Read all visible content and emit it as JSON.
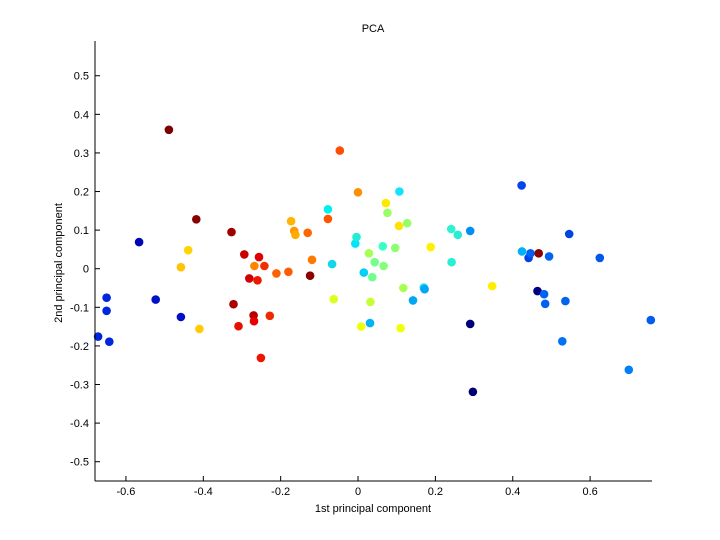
{
  "chart_data": {
    "type": "scatter",
    "title": "PCA",
    "xlabel": "1st principal component",
    "ylabel": "2nd principal component",
    "xlim": [
      -0.68,
      0.76
    ],
    "ylim": [
      -0.55,
      0.59
    ],
    "xticks": [
      -0.6,
      -0.4,
      -0.2,
      0,
      0.2,
      0.4,
      0.6
    ],
    "xtick_labels": [
      "-0.6",
      "-0.4",
      "-0.2",
      "0",
      "0.2",
      "0.4",
      "0.6"
    ],
    "yticks": [
      -0.5,
      -0.4,
      -0.3,
      -0.2,
      -0.1,
      0,
      0.1,
      0.2,
      0.3,
      0.4,
      0.5
    ],
    "ytick_labels": [
      "-0.5",
      "-0.4",
      "-0.3",
      "-0.2",
      "-0.1",
      "0",
      "0.1",
      "0.2",
      "0.3",
      "0.4",
      "0.5"
    ],
    "grid": false,
    "legend": false,
    "points": [
      {
        "x": -0.672,
        "y": -0.176,
        "color": "#0026dc"
      },
      {
        "x": -0.65,
        "y": -0.075,
        "color": "#0026dc"
      },
      {
        "x": -0.65,
        "y": -0.109,
        "color": "#0026dc"
      },
      {
        "x": -0.643,
        "y": -0.189,
        "color": "#0026dc"
      },
      {
        "x": -0.566,
        "y": 0.069,
        "color": "#0006b8"
      },
      {
        "x": -0.523,
        "y": -0.08,
        "color": "#0010c8"
      },
      {
        "x": -0.458,
        "y": -0.125,
        "color": "#0010c8"
      },
      {
        "x": -0.489,
        "y": 0.36,
        "color": "#7a0000"
      },
      {
        "x": -0.458,
        "y": 0.004,
        "color": "#ffc400"
      },
      {
        "x": -0.439,
        "y": 0.048,
        "color": "#ffd400"
      },
      {
        "x": -0.418,
        "y": 0.128,
        "color": "#880000"
      },
      {
        "x": -0.41,
        "y": -0.156,
        "color": "#ffcc00"
      },
      {
        "x": -0.327,
        "y": 0.095,
        "color": "#a00000"
      },
      {
        "x": -0.322,
        "y": -0.092,
        "color": "#aa0000"
      },
      {
        "x": -0.309,
        "y": -0.149,
        "color": "#e41000"
      },
      {
        "x": -0.294,
        "y": 0.037,
        "color": "#c60000"
      },
      {
        "x": -0.281,
        "y": -0.025,
        "color": "#d00000"
      },
      {
        "x": -0.27,
        "y": -0.121,
        "color": "#b40000"
      },
      {
        "x": -0.269,
        "y": -0.136,
        "color": "#e80000"
      },
      {
        "x": -0.268,
        "y": 0.007,
        "color": "#ff8400"
      },
      {
        "x": -0.26,
        "y": -0.03,
        "color": "#ec1800"
      },
      {
        "x": -0.256,
        "y": 0.03,
        "color": "#e00000"
      },
      {
        "x": -0.251,
        "y": -0.231,
        "color": "#f01400"
      },
      {
        "x": -0.242,
        "y": 0.007,
        "color": "#f03000"
      },
      {
        "x": -0.228,
        "y": -0.122,
        "color": "#f02800"
      },
      {
        "x": -0.211,
        "y": -0.012,
        "color": "#ff6000"
      },
      {
        "x": -0.18,
        "y": -0.008,
        "color": "#ff5c00"
      },
      {
        "x": -0.173,
        "y": 0.123,
        "color": "#ffb400"
      },
      {
        "x": -0.165,
        "y": 0.098,
        "color": "#ff9800"
      },
      {
        "x": -0.162,
        "y": 0.088,
        "color": "#ffac00"
      },
      {
        "x": -0.13,
        "y": 0.093,
        "color": "#ff6400"
      },
      {
        "x": -0.124,
        "y": -0.018,
        "color": "#8c0000"
      },
      {
        "x": -0.119,
        "y": 0.023,
        "color": "#ff7800"
      },
      {
        "x": -0.078,
        "y": 0.129,
        "color": "#ff5400"
      },
      {
        "x": -0.078,
        "y": 0.154,
        "color": "#00f0f0"
      },
      {
        "x": -0.067,
        "y": 0.012,
        "color": "#12d6ec"
      },
      {
        "x": -0.063,
        "y": -0.079,
        "color": "#dcff20"
      },
      {
        "x": -0.047,
        "y": 0.306,
        "color": "#ff4c00"
      },
      {
        "x": -0.007,
        "y": 0.065,
        "color": "#00e4f8"
      },
      {
        "x": -0.004,
        "y": 0.082,
        "color": "#22ecd4"
      },
      {
        "x": 0.0,
        "y": 0.198,
        "color": "#ff9000"
      },
      {
        "x": 0.008,
        "y": -0.15,
        "color": "#ecff10"
      },
      {
        "x": 0.015,
        "y": -0.01,
        "color": "#00d0f8"
      },
      {
        "x": 0.028,
        "y": 0.04,
        "color": "#a8ff54"
      },
      {
        "x": 0.031,
        "y": -0.141,
        "color": "#00b4f0"
      },
      {
        "x": 0.032,
        "y": -0.086,
        "color": "#c4ff3a"
      },
      {
        "x": 0.037,
        "y": -0.022,
        "color": "#70ff8c"
      },
      {
        "x": 0.043,
        "y": 0.017,
        "color": "#74ff88"
      },
      {
        "x": 0.064,
        "y": 0.058,
        "color": "#38ffc4"
      },
      {
        "x": 0.066,
        "y": 0.007,
        "color": "#84ff7a"
      },
      {
        "x": 0.072,
        "y": 0.17,
        "color": "#ffe800"
      },
      {
        "x": 0.076,
        "y": 0.145,
        "color": "#9aff64"
      },
      {
        "x": 0.096,
        "y": 0.054,
        "color": "#90ff6e"
      },
      {
        "x": 0.106,
        "y": 0.111,
        "color": "#ffe200"
      },
      {
        "x": 0.107,
        "y": 0.2,
        "color": "#12e4f8"
      },
      {
        "x": 0.11,
        "y": -0.154,
        "color": "#f2ff0a"
      },
      {
        "x": 0.117,
        "y": -0.05,
        "color": "#a8ff54"
      },
      {
        "x": 0.127,
        "y": 0.118,
        "color": "#94ff6a"
      },
      {
        "x": 0.142,
        "y": -0.082,
        "color": "#00a8f4"
      },
      {
        "x": 0.17,
        "y": -0.049,
        "color": "#18dcec"
      },
      {
        "x": 0.172,
        "y": -0.053,
        "color": "#00a4f8"
      },
      {
        "x": 0.188,
        "y": 0.056,
        "color": "#fff000"
      },
      {
        "x": 0.241,
        "y": 0.103,
        "color": "#2cf4d0"
      },
      {
        "x": 0.242,
        "y": 0.017,
        "color": "#28f0d2"
      },
      {
        "x": 0.258,
        "y": 0.088,
        "color": "#28ecd6"
      },
      {
        "x": 0.29,
        "y": 0.098,
        "color": "#0090f4"
      },
      {
        "x": 0.29,
        "y": -0.143,
        "color": "#000078"
      },
      {
        "x": 0.297,
        "y": -0.319,
        "color": "#000070"
      },
      {
        "x": 0.347,
        "y": -0.045,
        "color": "#ffee00"
      },
      {
        "x": 0.423,
        "y": 0.216,
        "color": "#0044f0"
      },
      {
        "x": 0.424,
        "y": 0.045,
        "color": "#00b0f8"
      },
      {
        "x": 0.441,
        "y": 0.028,
        "color": "#0040e8"
      },
      {
        "x": 0.446,
        "y": 0.04,
        "color": "#0060f0"
      },
      {
        "x": 0.464,
        "y": -0.058,
        "color": "#000080"
      },
      {
        "x": 0.467,
        "y": 0.04,
        "color": "#880000"
      },
      {
        "x": 0.481,
        "y": -0.066,
        "color": "#0060f0"
      },
      {
        "x": 0.484,
        "y": -0.091,
        "color": "#0060f0"
      },
      {
        "x": 0.494,
        "y": 0.032,
        "color": "#0064f0"
      },
      {
        "x": 0.528,
        "y": -0.188,
        "color": "#0070f4"
      },
      {
        "x": 0.536,
        "y": -0.084,
        "color": "#0064f0"
      },
      {
        "x": 0.546,
        "y": 0.09,
        "color": "#0044e0"
      },
      {
        "x": 0.625,
        "y": 0.028,
        "color": "#0058e8"
      },
      {
        "x": 0.7,
        "y": -0.262,
        "color": "#0080f4"
      },
      {
        "x": 0.757,
        "y": -0.133,
        "color": "#005cf0"
      }
    ]
  }
}
